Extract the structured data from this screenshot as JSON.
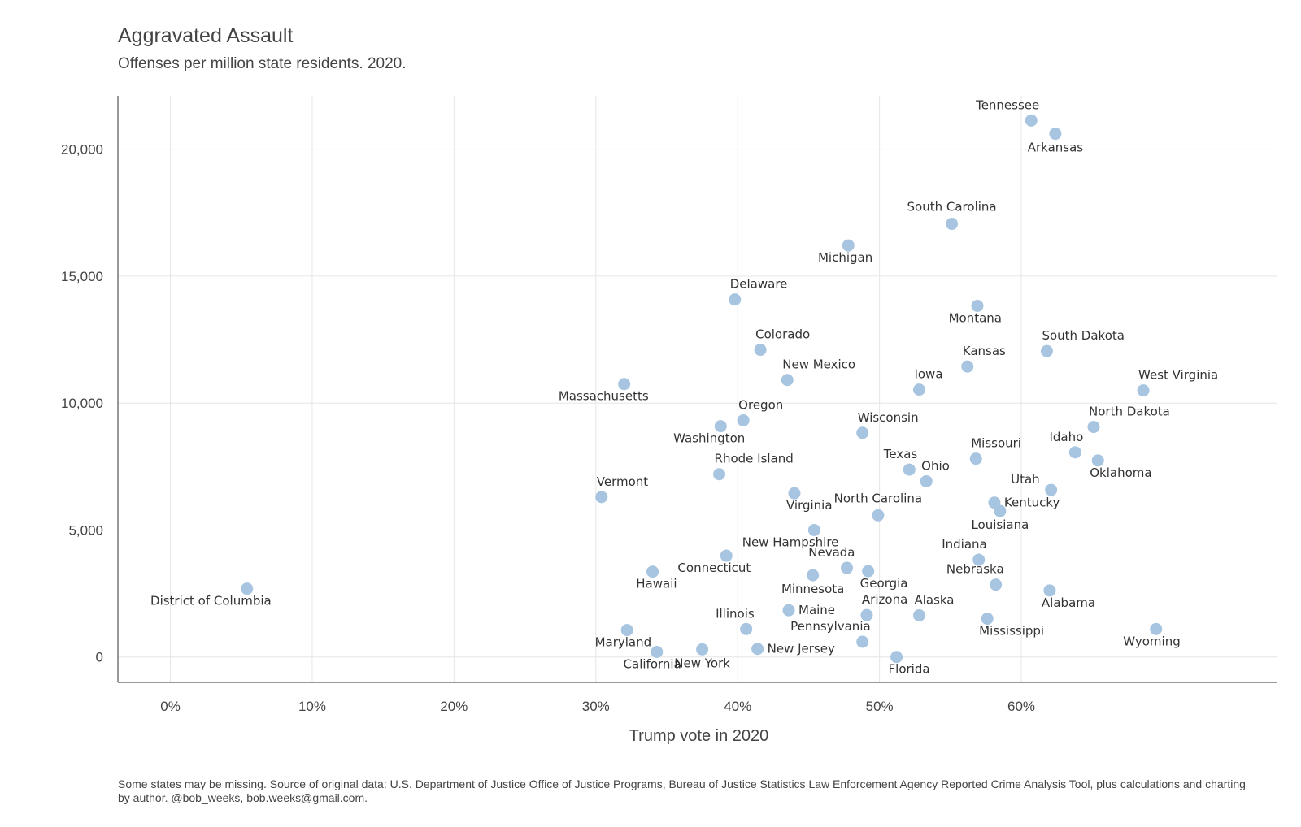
{
  "header": {
    "title": "Aggravated Assault",
    "subtitle": "Offenses per million state residents. 2020."
  },
  "footer": {
    "caption": "Some states may be missing. Source of original data: U.S. Department of Justice Office of Justice Programs, Bureau of Justice Statistics Law Enforcement Agency Reported Crime Analysis Tool, plus calculations and charting by author. @bob_weeks, bob.weeks@gmail.com."
  },
  "colors": {
    "point": "#a7c4e0",
    "grid": "#e6e6e6",
    "axis": "#777777",
    "text": "#333333"
  },
  "chart_data": {
    "type": "scatter",
    "title": "Aggravated Assault",
    "subtitle": "Offenses per million state residents. 2020.",
    "xlabel": "Trump vote in 2020",
    "ylabel": "",
    "xlim": [
      -0.037,
      0.78
    ],
    "ylim": [
      -1000,
      22100
    ],
    "xticks": [
      0,
      0.1,
      0.2,
      0.3,
      0.4,
      0.5,
      0.6
    ],
    "xtick_labels": [
      "0%",
      "10%",
      "20%",
      "30%",
      "40%",
      "50%",
      "60%"
    ],
    "yticks": [
      0,
      5000,
      10000,
      15000,
      20000
    ],
    "ytick_labels": [
      "0",
      "5,000",
      "10,000",
      "15,000",
      "20,000"
    ],
    "grid": true,
    "legend": "none",
    "points": [
      {
        "label": "Tennessee",
        "x": 0.607,
        "y": 21130,
        "pos": "above-left"
      },
      {
        "label": "Arkansas",
        "x": 0.624,
        "y": 20610,
        "pos": "below"
      },
      {
        "label": "South Carolina",
        "x": 0.551,
        "y": 17060,
        "pos": "above"
      },
      {
        "label": "Michigan",
        "x": 0.478,
        "y": 16210,
        "pos": "below-left"
      },
      {
        "label": "Delaware",
        "x": 0.398,
        "y": 14080,
        "pos": "above-right"
      },
      {
        "label": "Montana",
        "x": 0.569,
        "y": 13830,
        "pos": "below-left"
      },
      {
        "label": "Colorado",
        "x": 0.416,
        "y": 12100,
        "pos": "above-right"
      },
      {
        "label": "South Dakota",
        "x": 0.618,
        "y": 12050,
        "pos": "above-right"
      },
      {
        "label": "Kansas",
        "x": 0.562,
        "y": 11440,
        "pos": "above-right"
      },
      {
        "label": "New Mexico",
        "x": 0.435,
        "y": 10910,
        "pos": "above-right"
      },
      {
        "label": "Massachusetts",
        "x": 0.32,
        "y": 10750,
        "pos": "below-left"
      },
      {
        "label": "Iowa",
        "x": 0.528,
        "y": 10530,
        "pos": "above-right"
      },
      {
        "label": "West Virginia",
        "x": 0.686,
        "y": 10500,
        "pos": "above-right"
      },
      {
        "label": "Oregon",
        "x": 0.404,
        "y": 9320,
        "pos": "above-right"
      },
      {
        "label": "Washington",
        "x": 0.388,
        "y": 9090,
        "pos": "below-left"
      },
      {
        "label": "North Dakota",
        "x": 0.651,
        "y": 9060,
        "pos": "above-right"
      },
      {
        "label": "Wisconsin",
        "x": 0.488,
        "y": 8830,
        "pos": "above-right"
      },
      {
        "label": "Idaho",
        "x": 0.638,
        "y": 8060,
        "pos": "above-left"
      },
      {
        "label": "Missouri",
        "x": 0.568,
        "y": 7810,
        "pos": "above-right"
      },
      {
        "label": "Oklahoma",
        "x": 0.654,
        "y": 7740,
        "pos": "below-right"
      },
      {
        "label": "Texas",
        "x": 0.521,
        "y": 7380,
        "pos": "above-left"
      },
      {
        "label": "Rhode Island",
        "x": 0.387,
        "y": 7200,
        "pos": "above-right"
      },
      {
        "label": "Ohio",
        "x": 0.533,
        "y": 6920,
        "pos": "above-right"
      },
      {
        "label": "Utah",
        "x": 0.621,
        "y": 6580,
        "pos": "left"
      },
      {
        "label": "Virginia",
        "x": 0.44,
        "y": 6450,
        "pos": "below-right"
      },
      {
        "label": "Vermont",
        "x": 0.304,
        "y": 6300,
        "pos": "above-right"
      },
      {
        "label": "Kentucky",
        "x": 0.581,
        "y": 6080,
        "pos": "right"
      },
      {
        "label": "Louisiana",
        "x": 0.585,
        "y": 5750,
        "pos": "below"
      },
      {
        "label": "North Carolina",
        "x": 0.499,
        "y": 5580,
        "pos": "above"
      },
      {
        "label": "New Hampshire",
        "x": 0.454,
        "y": 5000,
        "pos": "below-left"
      },
      {
        "label": "Connecticut",
        "x": 0.392,
        "y": 3990,
        "pos": "below-left"
      },
      {
        "label": "Indiana",
        "x": 0.57,
        "y": 3830,
        "pos": "above-left"
      },
      {
        "label": "Nevada",
        "x": 0.477,
        "y": 3510,
        "pos": "above-left"
      },
      {
        "label": "Georgia",
        "x": 0.492,
        "y": 3380,
        "pos": "below-right"
      },
      {
        "label": "Hawaii",
        "x": 0.34,
        "y": 3360,
        "pos": "below-left"
      },
      {
        "label": "Minnesota",
        "x": 0.453,
        "y": 3220,
        "pos": "below"
      },
      {
        "label": "Nebraska",
        "x": 0.582,
        "y": 2850,
        "pos": "above-left"
      },
      {
        "label": "District of Columbia",
        "x": 0.054,
        "y": 2690,
        "pos": "below-left"
      },
      {
        "label": "Alabama",
        "x": 0.62,
        "y": 2620,
        "pos": "below-right"
      },
      {
        "label": "Maine",
        "x": 0.436,
        "y": 1840,
        "pos": "right"
      },
      {
        "label": "Arizona",
        "x": 0.491,
        "y": 1650,
        "pos": "above-right"
      },
      {
        "label": "Alaska",
        "x": 0.528,
        "y": 1640,
        "pos": "above-right"
      },
      {
        "label": "Mississippi",
        "x": 0.576,
        "y": 1510,
        "pos": "below-right"
      },
      {
        "label": "Illinois",
        "x": 0.406,
        "y": 1100,
        "pos": "above-left"
      },
      {
        "label": "Wyoming",
        "x": 0.695,
        "y": 1100,
        "pos": "below-left"
      },
      {
        "label": "Maryland",
        "x": 0.322,
        "y": 1060,
        "pos": "below-left"
      },
      {
        "label": "Pennsylvania",
        "x": 0.488,
        "y": 600,
        "pos": "above-left"
      },
      {
        "label": "New Jersey",
        "x": 0.414,
        "y": 320,
        "pos": "right"
      },
      {
        "label": "New York",
        "x": 0.375,
        "y": 300,
        "pos": "below"
      },
      {
        "label": "California",
        "x": 0.343,
        "y": 200,
        "pos": "below-left"
      },
      {
        "label": "Florida",
        "x": 0.512,
        "y": 0,
        "pos": "below-right"
      }
    ]
  }
}
